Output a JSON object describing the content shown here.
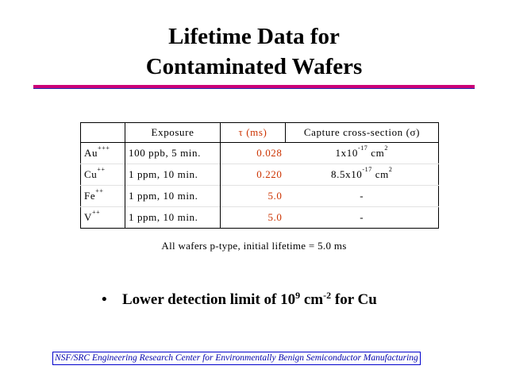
{
  "title": {
    "line1": "Lifetime Data for",
    "line2": "Contaminated Wafers"
  },
  "colors": {
    "title_rule": "#cc0077",
    "tau_values": "#cc3300",
    "footer": "#0000aa"
  },
  "table": {
    "headers": {
      "element": "",
      "exposure": "Exposure",
      "tau": "τ (ms)",
      "capture": "Capture cross-section (σ)"
    },
    "rows": [
      {
        "element": "Au",
        "charge": "+++",
        "exposure": "100 ppb, 5 min.",
        "tau": "0.028",
        "cap_mant": "1x10",
        "cap_exp": "-17",
        "cap_unit": "cm",
        "cap_unit_exp": "2"
      },
      {
        "element": "Cu",
        "charge": "++",
        "exposure": "1 ppm, 10 min.",
        "tau": "0.220",
        "cap_mant": "8.5x10",
        "cap_exp": "-17",
        "cap_unit": "cm",
        "cap_unit_exp": "2"
      },
      {
        "element": "Fe",
        "charge": "++",
        "exposure": "1 ppm, 10 min.",
        "tau": "5.0",
        "cap_plain": "-"
      },
      {
        "element": "V",
        "charge": "++",
        "exposure": "1 ppm, 10 min.",
        "tau": "5.0",
        "cap_plain": "-"
      }
    ]
  },
  "note": "All wafers p-type, initial lifetime = 5.0 ms",
  "bullet": {
    "symbol": "•",
    "text_before": "Lower detection limit of 10",
    "power": "9",
    "text_mid": " cm",
    "unit_exp": "-2",
    "text_after": " for Cu"
  },
  "footer": "NSF/SRC Engineering Research Center for Environmentally Benign Semiconductor Manufacturing"
}
